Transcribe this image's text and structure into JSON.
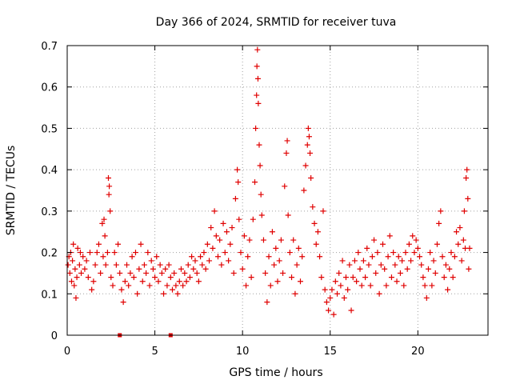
{
  "chart_data": {
    "type": "scatter",
    "title": "Day 366 of 2024, SRMTID for receiver tuva",
    "xlabel": "GPS time / hours",
    "ylabel": "SRMTID / TECUs",
    "xlim": [
      0,
      24
    ],
    "ylim": [
      0,
      0.7
    ],
    "xticks": [
      0,
      5,
      10,
      15,
      20
    ],
    "yticks": [
      0,
      0.1,
      0.2,
      0.3,
      0.4,
      0.5,
      0.6,
      0.7
    ],
    "grid": true,
    "marker": "+",
    "color": "#e00000",
    "series": [
      {
        "name": "SRMTID",
        "points": [
          [
            0.05,
            0.17
          ],
          [
            0.1,
            0.19
          ],
          [
            0.15,
            0.15
          ],
          [
            0.2,
            0.2
          ],
          [
            0.25,
            0.13
          ],
          [
            0.3,
            0.18
          ],
          [
            0.35,
            0.22
          ],
          [
            0.4,
            0.12
          ],
          [
            0.45,
            0.16
          ],
          [
            0.5,
            0.09
          ],
          [
            0.55,
            0.14
          ],
          [
            0.6,
            0.21
          ],
          [
            0.7,
            0.17
          ],
          [
            0.75,
            0.2
          ],
          [
            0.8,
            0.15
          ],
          [
            0.9,
            0.19
          ],
          [
            1.0,
            0.16
          ],
          [
            1.1,
            0.18
          ],
          [
            1.2,
            0.14
          ],
          [
            1.3,
            0.2
          ],
          [
            1.4,
            0.11
          ],
          [
            1.5,
            0.13
          ],
          [
            1.6,
            0.17
          ],
          [
            1.7,
            0.2
          ],
          [
            1.8,
            0.22
          ],
          [
            1.9,
            0.15
          ],
          [
            2.0,
            0.27
          ],
          [
            2.05,
            0.19
          ],
          [
            2.1,
            0.28
          ],
          [
            2.15,
            0.24
          ],
          [
            2.2,
            0.17
          ],
          [
            2.3,
            0.2
          ],
          [
            2.35,
            0.38
          ],
          [
            2.38,
            0.34
          ],
          [
            2.4,
            0.36
          ],
          [
            2.45,
            0.3
          ],
          [
            2.5,
            0.14
          ],
          [
            2.6,
            0.12
          ],
          [
            2.7,
            0.2
          ],
          [
            2.8,
            0.17
          ],
          [
            2.9,
            0.22
          ],
          [
            3.0,
            0.15
          ],
          [
            3.1,
            0.11
          ],
          [
            3.2,
            0.08
          ],
          [
            3.3,
            0.13
          ],
          [
            3.4,
            0.17
          ],
          [
            3.5,
            0.12
          ],
          [
            3.6,
            0.15
          ],
          [
            3.7,
            0.19
          ],
          [
            3.8,
            0.14
          ],
          [
            3.9,
            0.2
          ],
          [
            4.0,
            0.1
          ],
          [
            4.1,
            0.16
          ],
          [
            4.2,
            0.22
          ],
          [
            4.3,
            0.13
          ],
          [
            4.4,
            0.17
          ],
          [
            4.5,
            0.15
          ],
          [
            4.6,
            0.2
          ],
          [
            4.7,
            0.12
          ],
          [
            4.8,
            0.18
          ],
          [
            4.9,
            0.16
          ],
          [
            5.0,
            0.14
          ],
          [
            5.1,
            0.19
          ],
          [
            5.2,
            0.13
          ],
          [
            5.3,
            0.17
          ],
          [
            5.4,
            0.15
          ],
          [
            5.5,
            0.1
          ],
          [
            5.6,
            0.16
          ],
          [
            5.7,
            0.12
          ],
          [
            5.8,
            0.17
          ],
          [
            5.9,
            0.14
          ],
          [
            6.0,
            0.11
          ],
          [
            6.1,
            0.15
          ],
          [
            6.2,
            0.12
          ],
          [
            6.3,
            0.1
          ],
          [
            6.4,
            0.13
          ],
          [
            6.5,
            0.16
          ],
          [
            6.6,
            0.12
          ],
          [
            6.7,
            0.15
          ],
          [
            6.8,
            0.13
          ],
          [
            6.9,
            0.17
          ],
          [
            7.0,
            0.14
          ],
          [
            7.1,
            0.19
          ],
          [
            7.2,
            0.16
          ],
          [
            7.3,
            0.18
          ],
          [
            7.4,
            0.15
          ],
          [
            7.5,
            0.13
          ],
          [
            7.6,
            0.19
          ],
          [
            7.7,
            0.17
          ],
          [
            7.8,
            0.2
          ],
          [
            7.9,
            0.16
          ],
          [
            8.0,
            0.22
          ],
          [
            8.1,
            0.18
          ],
          [
            8.2,
            0.26
          ],
          [
            8.3,
            0.21
          ],
          [
            8.4,
            0.3
          ],
          [
            8.5,
            0.24
          ],
          [
            8.6,
            0.19
          ],
          [
            8.7,
            0.23
          ],
          [
            8.8,
            0.17
          ],
          [
            8.9,
            0.27
          ],
          [
            9.0,
            0.2
          ],
          [
            9.1,
            0.25
          ],
          [
            9.2,
            0.18
          ],
          [
            9.3,
            0.22
          ],
          [
            9.4,
            0.26
          ],
          [
            9.5,
            0.15
          ],
          [
            9.6,
            0.33
          ],
          [
            9.7,
            0.4
          ],
          [
            9.75,
            0.37
          ],
          [
            9.8,
            0.28
          ],
          [
            9.9,
            0.2
          ],
          [
            10.0,
            0.16
          ],
          [
            10.1,
            0.24
          ],
          [
            10.2,
            0.12
          ],
          [
            10.3,
            0.19
          ],
          [
            10.4,
            0.23
          ],
          [
            10.5,
            0.14
          ],
          [
            10.6,
            0.28
          ],
          [
            10.7,
            0.37
          ],
          [
            10.75,
            0.5
          ],
          [
            10.8,
            0.58
          ],
          [
            10.82,
            0.65
          ],
          [
            10.85,
            0.69
          ],
          [
            10.88,
            0.62
          ],
          [
            10.9,
            0.56
          ],
          [
            10.95,
            0.46
          ],
          [
            11.0,
            0.41
          ],
          [
            11.05,
            0.34
          ],
          [
            11.1,
            0.29
          ],
          [
            11.2,
            0.23
          ],
          [
            11.3,
            0.15
          ],
          [
            11.4,
            0.08
          ],
          [
            11.5,
            0.19
          ],
          [
            11.6,
            0.12
          ],
          [
            11.7,
            0.25
          ],
          [
            11.8,
            0.17
          ],
          [
            11.9,
            0.21
          ],
          [
            12.0,
            0.13
          ],
          [
            12.1,
            0.18
          ],
          [
            12.2,
            0.23
          ],
          [
            12.3,
            0.15
          ],
          [
            12.4,
            0.36
          ],
          [
            12.5,
            0.44
          ],
          [
            12.55,
            0.47
          ],
          [
            12.6,
            0.29
          ],
          [
            12.7,
            0.2
          ],
          [
            12.8,
            0.14
          ],
          [
            12.9,
            0.23
          ],
          [
            13.0,
            0.1
          ],
          [
            13.1,
            0.17
          ],
          [
            13.2,
            0.21
          ],
          [
            13.3,
            0.13
          ],
          [
            13.4,
            0.19
          ],
          [
            13.5,
            0.35
          ],
          [
            13.6,
            0.41
          ],
          [
            13.7,
            0.46
          ],
          [
            13.75,
            0.5
          ],
          [
            13.8,
            0.48
          ],
          [
            13.85,
            0.44
          ],
          [
            13.9,
            0.38
          ],
          [
            14.0,
            0.31
          ],
          [
            14.1,
            0.27
          ],
          [
            14.2,
            0.22
          ],
          [
            14.3,
            0.25
          ],
          [
            14.4,
            0.19
          ],
          [
            14.5,
            0.14
          ],
          [
            14.6,
            0.3
          ],
          [
            14.7,
            0.11
          ],
          [
            14.8,
            0.08
          ],
          [
            14.9,
            0.06
          ],
          [
            15.0,
            0.09
          ],
          [
            15.1,
            0.11
          ],
          [
            15.2,
            0.05
          ],
          [
            15.3,
            0.13
          ],
          [
            15.4,
            0.1
          ],
          [
            15.5,
            0.15
          ],
          [
            15.6,
            0.12
          ],
          [
            15.7,
            0.18
          ],
          [
            15.8,
            0.09
          ],
          [
            15.9,
            0.14
          ],
          [
            16.0,
            0.11
          ],
          [
            16.1,
            0.17
          ],
          [
            16.2,
            0.06
          ],
          [
            16.3,
            0.14
          ],
          [
            16.4,
            0.18
          ],
          [
            16.5,
            0.13
          ],
          [
            16.6,
            0.2
          ],
          [
            16.7,
            0.16
          ],
          [
            16.8,
            0.12
          ],
          [
            16.9,
            0.18
          ],
          [
            17.0,
            0.14
          ],
          [
            17.1,
            0.21
          ],
          [
            17.2,
            0.17
          ],
          [
            17.3,
            0.12
          ],
          [
            17.4,
            0.19
          ],
          [
            17.5,
            0.23
          ],
          [
            17.6,
            0.15
          ],
          [
            17.7,
            0.2
          ],
          [
            17.8,
            0.1
          ],
          [
            17.9,
            0.17
          ],
          [
            18.0,
            0.22
          ],
          [
            18.1,
            0.16
          ],
          [
            18.2,
            0.12
          ],
          [
            18.3,
            0.19
          ],
          [
            18.4,
            0.24
          ],
          [
            18.5,
            0.14
          ],
          [
            18.6,
            0.2
          ],
          [
            18.7,
            0.17
          ],
          [
            18.8,
            0.13
          ],
          [
            18.9,
            0.19
          ],
          [
            19.0,
            0.15
          ],
          [
            19.1,
            0.18
          ],
          [
            19.2,
            0.12
          ],
          [
            19.3,
            0.2
          ],
          [
            19.4,
            0.16
          ],
          [
            19.5,
            0.22
          ],
          [
            19.6,
            0.18
          ],
          [
            19.7,
            0.24
          ],
          [
            19.8,
            0.2
          ],
          [
            19.9,
            0.23
          ],
          [
            20.0,
            0.21
          ],
          [
            20.1,
            0.19
          ],
          [
            20.2,
            0.17
          ],
          [
            20.3,
            0.14
          ],
          [
            20.4,
            0.12
          ],
          [
            20.5,
            0.09
          ],
          [
            20.6,
            0.16
          ],
          [
            20.7,
            0.2
          ],
          [
            20.8,
            0.12
          ],
          [
            20.9,
            0.18
          ],
          [
            21.0,
            0.15
          ],
          [
            21.1,
            0.22
          ],
          [
            21.2,
            0.27
          ],
          [
            21.3,
            0.3
          ],
          [
            21.4,
            0.19
          ],
          [
            21.5,
            0.14
          ],
          [
            21.6,
            0.17
          ],
          [
            21.7,
            0.11
          ],
          [
            21.8,
            0.16
          ],
          [
            21.9,
            0.2
          ],
          [
            22.0,
            0.14
          ],
          [
            22.1,
            0.19
          ],
          [
            22.2,
            0.25
          ],
          [
            22.3,
            0.22
          ],
          [
            22.4,
            0.26
          ],
          [
            22.5,
            0.18
          ],
          [
            22.6,
            0.23
          ],
          [
            22.65,
            0.3
          ],
          [
            22.7,
            0.21
          ],
          [
            22.75,
            0.38
          ],
          [
            22.8,
            0.4
          ],
          [
            22.85,
            0.33
          ],
          [
            22.9,
            0.16
          ],
          [
            22.95,
            0.21
          ]
        ]
      }
    ],
    "x_markers": [
      3.0,
      5.9
    ]
  }
}
